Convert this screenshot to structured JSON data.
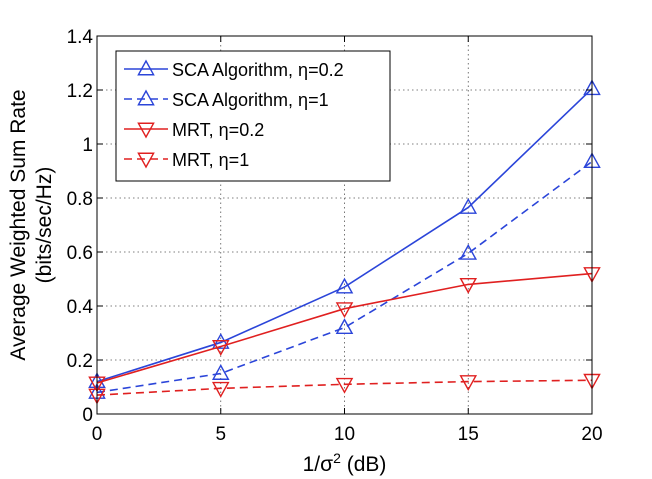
{
  "chart_data": {
    "type": "line",
    "title": "",
    "xlabel": {
      "base": "1/σ",
      "sup": "2",
      "suffix": " (dB)"
    },
    "ylabel": [
      "Average Weighted Sum Rate",
      "(bits/sec/Hz)"
    ],
    "xlim": [
      0,
      20
    ],
    "ylim": [
      0,
      1.4
    ],
    "xticks": [
      0,
      5,
      10,
      15,
      20
    ],
    "yticks": [
      0,
      0.2,
      0.4,
      0.6,
      0.8,
      1,
      1.2,
      1.4
    ],
    "grid": true,
    "legend_position": "top-left",
    "x": [
      0,
      5,
      10,
      15,
      20
    ],
    "series": [
      {
        "name": "SCA Algorithm, η=0.2",
        "color": "#2b45d9",
        "dash": "solid",
        "marker": "triangle-up",
        "values": [
          0.12,
          0.265,
          0.47,
          0.765,
          1.205
        ]
      },
      {
        "name": "SCA Algorithm, η=1",
        "color": "#2b45d9",
        "dash": "dashed",
        "marker": "triangle-up",
        "values": [
          0.08,
          0.15,
          0.32,
          0.595,
          0.935
        ]
      },
      {
        "name": "MRT, η=0.2",
        "color": "#e02020",
        "dash": "solid",
        "marker": "triangle-down",
        "values": [
          0.115,
          0.25,
          0.39,
          0.48,
          0.52
        ]
      },
      {
        "name": "MRT, η=1",
        "color": "#e02020",
        "dash": "dashed",
        "marker": "triangle-down",
        "values": [
          0.07,
          0.095,
          0.11,
          0.12,
          0.125
        ]
      }
    ]
  }
}
